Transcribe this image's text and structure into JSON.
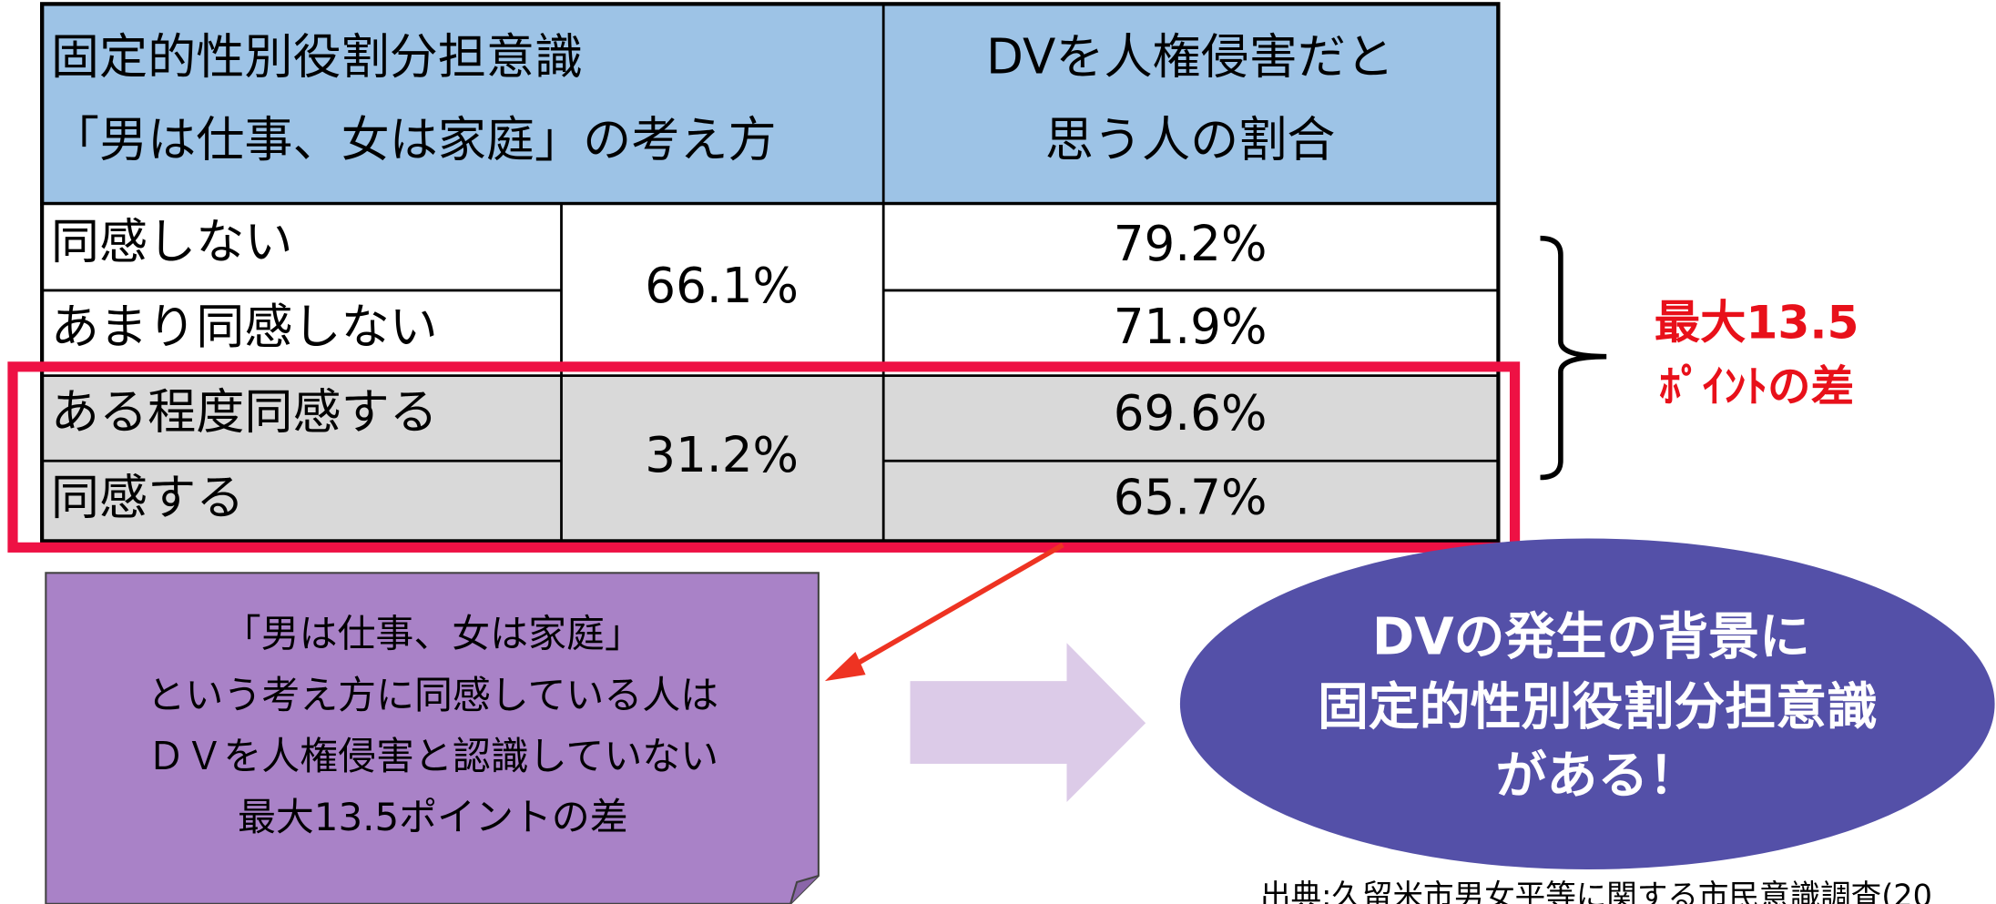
{
  "table": {
    "header": [
      "固定的性別役割分担意識",
      "「男は仕事、女は家庭」の考え方",
      "DVを人権侵害だと",
      "思う人の割合"
    ],
    "rows": [
      [
        "同感しない",
        "66.1%",
        "79.2%"
      ],
      [
        "あまり同感しない",
        "71.9%"
      ],
      [
        "ある程度同感する",
        "31.2%",
        "69.6%"
      ],
      [
        "同感する",
        "65.7%"
      ]
    ]
  },
  "callout": {
    "lines": [
      "最大13.5",
      "ﾎﾟｲﾝﾄの差"
    ]
  },
  "note": {
    "lines": [
      "「男は仕事、女は家庭」",
      "という考え方に同感している人は",
      "ＤＶを人権侵害と認識していない",
      "最大13.5ポイントの差"
    ]
  },
  "conclusion": {
    "lines": [
      "DVの発生の背景に",
      "固定的性別役割分担意識",
      "がある！"
    ]
  },
  "source": "出典:久留米市男女平等に関する市民意識調査(20"
}
